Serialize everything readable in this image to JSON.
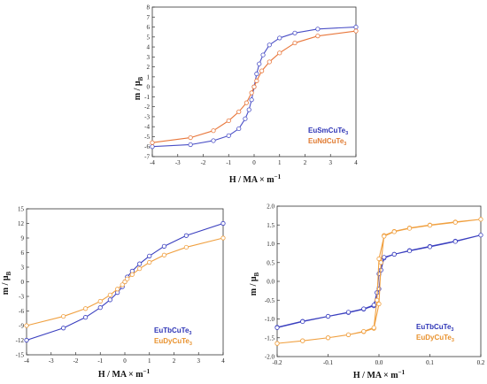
{
  "chart_data": [
    {
      "type": "line",
      "panel": "top",
      "xlabel_main": "H / MA × m",
      "xlabel_exp": "−1",
      "ylabel_main": "m / μ",
      "ylabel_sub": "B",
      "xlim": [
        -4,
        4
      ],
      "ylim": [
        -7,
        8
      ],
      "x_ticks": [
        "-4",
        "-3",
        "-2",
        "-1",
        "0",
        "1",
        "2",
        "3",
        "4"
      ],
      "y_ticks": [
        "-7",
        "-6",
        "-5",
        "-4",
        "-3",
        "-2",
        "-1",
        "0",
        "1",
        "2",
        "3",
        "4",
        "5",
        "6",
        "7",
        "8"
      ],
      "legend_position": "bottom-right",
      "series": [
        {
          "name_main": "EuSmCuTe",
          "name_sub": "3",
          "color": "#4a4fc6",
          "points": [
            [
              -4,
              -6.0
            ],
            [
              -2.5,
              -5.8
            ],
            [
              -1.6,
              -5.4
            ],
            [
              -1.0,
              -4.9
            ],
            [
              -0.6,
              -4.2
            ],
            [
              -0.35,
              -3.2
            ],
            [
              -0.2,
              -2.3
            ],
            [
              -0.1,
              -1.3
            ],
            [
              0,
              0
            ],
            [
              0.1,
              1.3
            ],
            [
              0.2,
              2.3
            ],
            [
              0.35,
              3.2
            ],
            [
              0.6,
              4.2
            ],
            [
              1.0,
              4.9
            ],
            [
              1.6,
              5.4
            ],
            [
              2.5,
              5.8
            ],
            [
              4,
              6.0
            ]
          ]
        },
        {
          "name_main": "EuNdCuTe",
          "name_sub": "3",
          "color": "#e8763a",
          "points": [
            [
              -4,
              -5.6
            ],
            [
              -2.5,
              -5.1
            ],
            [
              -1.6,
              -4.4
            ],
            [
              -1.0,
              -3.4
            ],
            [
              -0.6,
              -2.5
            ],
            [
              -0.3,
              -1.6
            ],
            [
              -0.1,
              -0.6
            ],
            [
              0,
              0
            ],
            [
              0.1,
              0.6
            ],
            [
              0.3,
              1.6
            ],
            [
              0.6,
              2.5
            ],
            [
              1.0,
              3.4
            ],
            [
              1.6,
              4.4
            ],
            [
              2.5,
              5.1
            ],
            [
              4,
              5.6
            ]
          ]
        }
      ]
    },
    {
      "type": "line",
      "panel": "bottom-left",
      "xlabel_main": "H / MA × m",
      "xlabel_exp": "−1",
      "ylabel_main": "m / μ",
      "ylabel_sub": "B",
      "xlim": [
        -4,
        4
      ],
      "ylim": [
        -15,
        15
      ],
      "x_ticks": [
        "-4",
        "-3",
        "-2",
        "-1",
        "0",
        "1",
        "2",
        "3",
        "4"
      ],
      "y_ticks": [
        "-15",
        "-12",
        "-9",
        "-6",
        "-3",
        "0",
        "3",
        "6",
        "9",
        "12",
        "15"
      ],
      "legend_position": "bottom-right",
      "series": [
        {
          "name_main": "EuTbCuTe",
          "name_sub": "3",
          "color": "#3a3fbf",
          "points": [
            [
              -4,
              -12.0
            ],
            [
              -2.5,
              -9.5
            ],
            [
              -1.6,
              -7.3
            ],
            [
              -1.0,
              -5.3
            ],
            [
              -0.6,
              -3.7
            ],
            [
              -0.3,
              -2.2
            ],
            [
              -0.1,
              -1.0
            ],
            [
              0,
              0
            ],
            [
              0.1,
              1.0
            ],
            [
              0.3,
              2.2
            ],
            [
              0.6,
              3.7
            ],
            [
              1.0,
              5.3
            ],
            [
              1.6,
              7.3
            ],
            [
              2.5,
              9.5
            ],
            [
              4,
              12.0
            ]
          ]
        },
        {
          "name_main": "EuDyCuTe",
          "name_sub": "3",
          "color": "#f0a040",
          "points": [
            [
              -4,
              -9.0
            ],
            [
              -2.5,
              -7.1
            ],
            [
              -1.6,
              -5.5
            ],
            [
              -1.0,
              -4.0
            ],
            [
              -0.6,
              -2.7
            ],
            [
              -0.3,
              -1.5
            ],
            [
              -0.1,
              -0.6
            ],
            [
              0,
              0
            ],
            [
              0.1,
              0.6
            ],
            [
              0.3,
              1.5
            ],
            [
              0.6,
              2.7
            ],
            [
              1.0,
              4.0
            ],
            [
              1.6,
              5.5
            ],
            [
              2.5,
              7.1
            ],
            [
              4,
              9.0
            ]
          ]
        }
      ]
    },
    {
      "type": "line",
      "panel": "bottom-right",
      "xlabel_main": "H / MA × m",
      "xlabel_exp": "−1",
      "ylabel_main": "m / μ",
      "ylabel_sub": "B",
      "xlim": [
        -0.2,
        0.2
      ],
      "ylim": [
        -2.0,
        2.0
      ],
      "x_ticks": [
        "-0.2",
        "-0.1",
        "0.0",
        "0.1",
        "0.2"
      ],
      "y_ticks": [
        "-2.0",
        "-1.5",
        "-1.0",
        "-0.5",
        "0.0",
        "0.5",
        "1.0",
        "1.5",
        "2.0"
      ],
      "legend_position": "bottom-right",
      "series": [
        {
          "name_main": "EuTbCuTe",
          "name_sub": "3",
          "color": "#3a3fbf",
          "points": [
            [
              -0.2,
              -1.22
            ],
            [
              -0.15,
              -1.06
            ],
            [
              -0.1,
              -0.93
            ],
            [
              -0.06,
              -0.83
            ],
            [
              -0.03,
              -0.74
            ],
            [
              -0.01,
              -0.65
            ],
            [
              0,
              -0.2
            ],
            [
              0.004,
              0.3
            ],
            [
              0.01,
              0.62
            ],
            [
              0.03,
              0.72
            ],
            [
              0.06,
              0.82
            ],
            [
              0.1,
              0.93
            ],
            [
              0.15,
              1.07
            ],
            [
              0.2,
              1.23
            ],
            [
              0.15,
              1.06
            ],
            [
              0.1,
              0.92
            ],
            [
              0.06,
              0.81
            ],
            [
              0.03,
              0.72
            ],
            [
              0.01,
              0.64
            ],
            [
              0,
              0.2
            ],
            [
              -0.004,
              -0.3
            ],
            [
              -0.01,
              -0.63
            ],
            [
              -0.03,
              -0.73
            ],
            [
              -0.06,
              -0.82
            ],
            [
              -0.1,
              -0.93
            ],
            [
              -0.15,
              -1.07
            ],
            [
              -0.2,
              -1.23
            ]
          ]
        },
        {
          "name_main": "EuDyCuTe",
          "name_sub": "3",
          "color": "#f0a040",
          "points": [
            [
              -0.2,
              -1.65
            ],
            [
              -0.15,
              -1.58
            ],
            [
              -0.1,
              -1.5
            ],
            [
              -0.06,
              -1.42
            ],
            [
              -0.03,
              -1.34
            ],
            [
              -0.01,
              -1.25
            ],
            [
              0,
              -0.6
            ],
            [
              0.004,
              0.5
            ],
            [
              0.01,
              1.22
            ],
            [
              0.03,
              1.33
            ],
            [
              0.06,
              1.42
            ],
            [
              0.1,
              1.5
            ],
            [
              0.15,
              1.58
            ],
            [
              0.2,
              1.65
            ],
            [
              0.15,
              1.57
            ],
            [
              0.1,
              1.49
            ],
            [
              0.06,
              1.41
            ],
            [
              0.03,
              1.32
            ],
            [
              0.01,
              1.2
            ],
            [
              0,
              0.6
            ],
            [
              -0.004,
              -0.5
            ],
            [
              -0.01,
              -1.23
            ],
            [
              -0.03,
              -1.33
            ],
            [
              -0.06,
              -1.42
            ],
            [
              -0.1,
              -1.5
            ],
            [
              -0.15,
              -1.58
            ],
            [
              -0.2,
              -1.65
            ]
          ]
        }
      ]
    }
  ]
}
